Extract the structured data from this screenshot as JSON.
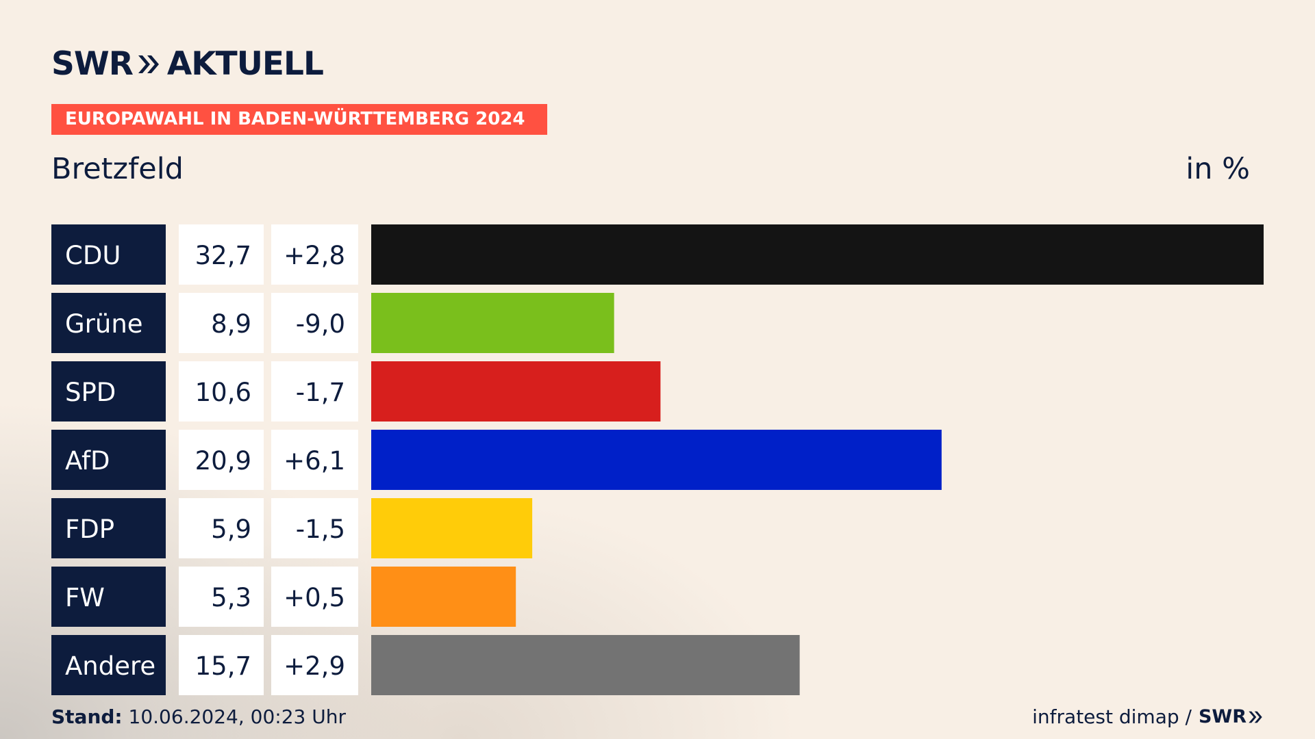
{
  "brand": {
    "swr_text": "SWR",
    "aktuell_text": "AKTUELL"
  },
  "banner": {
    "text": "EUROPAWAHL IN BADEN-WÜRTTEMBERG 2024",
    "color": "#ff5141"
  },
  "colors": {
    "label_bg": "#0d1c3d",
    "value_bg": "#ffffff",
    "text_dark": "#0d1c3d"
  },
  "chart_data": {
    "type": "bar",
    "title": "Bretzfeld",
    "unit_label": "in %",
    "categories": [
      "CDU",
      "Grüne",
      "SPD",
      "AfD",
      "FDP",
      "FW",
      "Andere"
    ],
    "values": [
      32.7,
      8.9,
      10.6,
      20.9,
      5.9,
      5.3,
      15.7
    ],
    "value_labels": [
      "32,7",
      "8,9",
      "10,6",
      "20,9",
      "5,9",
      "5,3",
      "15,7"
    ],
    "change_labels": [
      "+2,8",
      "-9,0",
      "-1,7",
      "+6,1",
      "-1,5",
      "+0,5",
      "+2,9"
    ],
    "colors": [
      "#141414",
      "#7abf1c",
      "#d71f1d",
      "#0020c8",
      "#ffcc09",
      "#ff8f16",
      "#737373"
    ],
    "xlim": [
      0,
      32.7
    ]
  },
  "footer": {
    "stand_label": "Stand:",
    "stand_value": "10.06.2024, 00:23 Uhr",
    "source": "infratest dimap /",
    "swr_text": "SWR"
  }
}
